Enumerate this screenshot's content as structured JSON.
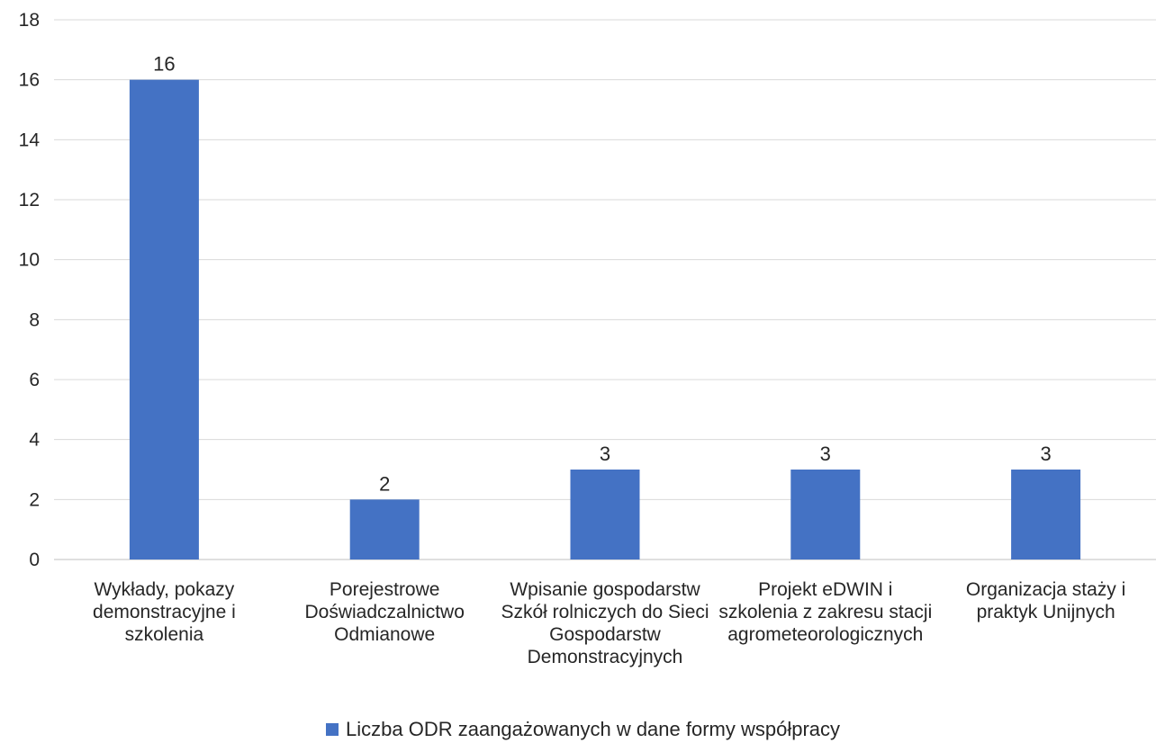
{
  "chart_data": {
    "type": "bar",
    "categories": [
      [
        "Wykłady, pokazy",
        "demonstracyjne i",
        "szkolenia"
      ],
      [
        "Porejestrowe",
        "Doświadczalnictwo",
        "Odmianowe"
      ],
      [
        "Wpisanie gospodarstw",
        "Szkół rolniczych do Sieci",
        "Gospodarstw",
        "Demonstracyjnych"
      ],
      [
        "Projekt eDWIN i",
        "szkolenia z zakresu stacji",
        "agrometeorologicznych"
      ],
      [
        "Organizacja staży i",
        "praktyk Unijnych"
      ]
    ],
    "series": [
      {
        "name": "Liczba ODR zaangażowanych w dane formy współpracy",
        "values": [
          16,
          2,
          3,
          3,
          3
        ],
        "color": "#4472C4"
      }
    ],
    "data_labels": [
      "16",
      "2",
      "3",
      "3",
      "3"
    ],
    "ylim": [
      0,
      18
    ],
    "yticks": [
      "0",
      "2",
      "4",
      "6",
      "8",
      "10",
      "12",
      "14",
      "16",
      "18"
    ],
    "grid": true,
    "legend_position": "bottom"
  }
}
